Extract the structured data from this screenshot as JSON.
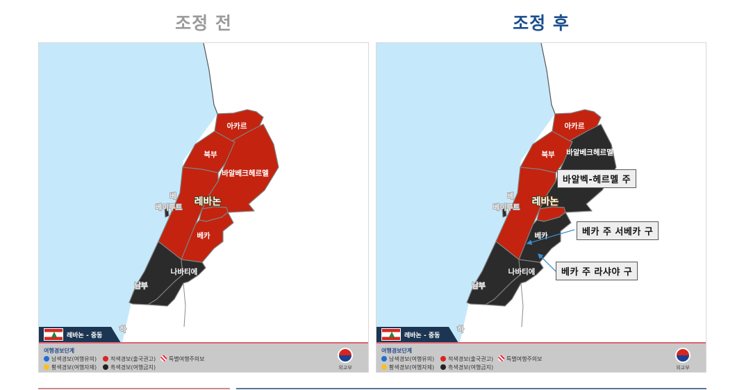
{
  "colors": {
    "sea": "#c5e9fb",
    "land": "#ffffff",
    "red_alert": "#c4230f",
    "black_alert": "#2b2b2b",
    "border": "#808080",
    "before_title": "#9a9a9a",
    "after_title": "#1a4f8e",
    "callout_arrow": "#3a8fd0"
  },
  "panels": [
    {
      "title": "조정 전",
      "regions": {
        "akkar": "red",
        "north": "red",
        "baalbek_hermel": "red",
        "mount_lebanon": "red",
        "bekaa_upper": "red",
        "bekaa_lower": "red",
        "south": "black",
        "nabatieh": "black",
        "beirut": "black"
      },
      "callouts": []
    },
    {
      "title": "조정 후",
      "regions": {
        "akkar": "red",
        "north": "red",
        "baalbek_hermel": "black",
        "mount_lebanon": "red",
        "bekaa_upper": "red",
        "bekaa_lower": "black",
        "south": "black",
        "nabatieh": "black",
        "beirut": "black"
      },
      "callouts": [
        "바알벡-헤르멜 주",
        "베카 주 서베카 구",
        "베카 주 라샤야 구"
      ]
    }
  ],
  "map_labels": {
    "akkar": "아카르",
    "north": "북부",
    "baalbek_hermel": "바알베크헤르멜",
    "lebanon": "레바논",
    "beirut": "베이루트",
    "beirut_small": "베",
    "bekaa": "베카",
    "nabatieh": "나바티에",
    "south": "남부",
    "ha": "하"
  },
  "ribbon": "레바논 - 중동",
  "legend": {
    "title": "여행경보단계",
    "items": [
      {
        "label": "남색경보(여행유의)",
        "color": "#1f6fd6"
      },
      {
        "label": "황색경보(여행자제)",
        "color": "#f5c125"
      },
      {
        "label": "적색경보(출국권고)",
        "color": "#d7261e"
      },
      {
        "label": "흑색경보(여행금지)",
        "color": "#222222"
      },
      {
        "label": "특별여행주의보",
        "color": "hatched-red"
      }
    ]
  },
  "logo": "외교부"
}
